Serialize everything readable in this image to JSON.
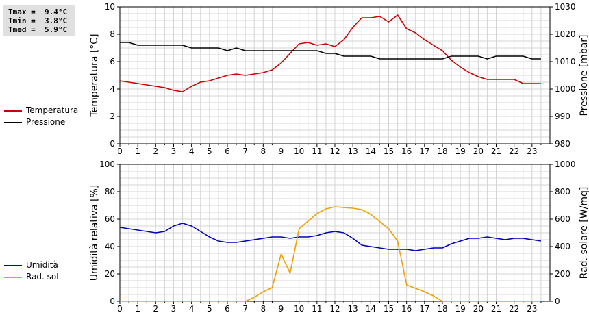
{
  "stats": {
    "tmax": "Tmax =  9.4°C",
    "tmin": "Tmin =  3.8°C",
    "tmed": "Tmed =  5.9°C"
  },
  "legend_top": [
    {
      "label": "Temperatura",
      "color": "#cc0000"
    },
    {
      "label": "Pressione",
      "color": "#000000"
    }
  ],
  "legend_bottom": [
    {
      "label": "Umidità",
      "color": "#0000bb"
    },
    {
      "label": "Rad. sol.",
      "color": "#f0a000"
    }
  ],
  "chart_data": [
    {
      "type": "line",
      "xlim": [
        0,
        24
      ],
      "xticks": [
        "0",
        "1",
        "2",
        "3",
        "4",
        "5",
        "6",
        "7",
        "8",
        "9",
        "10",
        "11",
        "12",
        "13",
        "14",
        "15",
        "16",
        "17",
        "18",
        "19",
        "20",
        "21",
        "22",
        "23"
      ],
      "ylabel": "Temperatura [°C]",
      "ylabel_right": "Pressione [mbar]",
      "ylim": [
        0,
        10
      ],
      "ylim_right": [
        980,
        1030
      ],
      "yticks": [
        "0",
        "2",
        "4",
        "6",
        "8",
        "10"
      ],
      "yticks_right": [
        "980",
        "990",
        "1000",
        "1010",
        "1020",
        "1030"
      ],
      "grid": true,
      "series": [
        {
          "name": "Temperatura",
          "axis": "left",
          "color": "#cc0000",
          "x": [
            0,
            0.5,
            1,
            1.5,
            2,
            2.5,
            3,
            3.5,
            4,
            4.5,
            5,
            5.5,
            6,
            6.5,
            7,
            7.5,
            8,
            8.5,
            9,
            9.5,
            10,
            10.5,
            11,
            11.5,
            12,
            12.5,
            13,
            13.5,
            14,
            14.5,
            15,
            15.5,
            16,
            16.5,
            17,
            17.5,
            18,
            18.5,
            19,
            19.5,
            20,
            20.5,
            21,
            21.5,
            22,
            22.5,
            23,
            23.5
          ],
          "values": [
            4.6,
            4.5,
            4.4,
            4.3,
            4.2,
            4.1,
            3.9,
            3.8,
            4.2,
            4.5,
            4.6,
            4.8,
            5.0,
            5.1,
            5.0,
            5.1,
            5.2,
            5.4,
            5.9,
            6.6,
            7.3,
            7.4,
            7.2,
            7.3,
            7.1,
            7.6,
            8.5,
            9.2,
            9.2,
            9.3,
            8.9,
            9.4,
            8.4,
            8.1,
            7.6,
            7.2,
            6.8,
            6.1,
            5.6,
            5.2,
            4.9,
            4.7,
            4.7,
            4.7,
            4.7,
            4.4,
            4.4,
            4.4
          ]
        },
        {
          "name": "Pressione",
          "axis": "right",
          "color": "#000000",
          "x": [
            0,
            0.5,
            1,
            1.5,
            2,
            2.5,
            3,
            3.5,
            4,
            4.5,
            5,
            5.5,
            6,
            6.5,
            7,
            7.5,
            8,
            8.5,
            9,
            9.5,
            10,
            10.5,
            11,
            11.5,
            12,
            12.5,
            13,
            13.5,
            14,
            14.5,
            15,
            15.5,
            16,
            16.5,
            17,
            17.5,
            18,
            18.5,
            19,
            19.5,
            20,
            20.5,
            21,
            21.5,
            22,
            22.5,
            23,
            23.5
          ],
          "values": [
            1017,
            1017,
            1016,
            1016,
            1016,
            1016,
            1016,
            1016,
            1015,
            1015,
            1015,
            1015,
            1014,
            1015,
            1014,
            1014,
            1014,
            1014,
            1014,
            1014,
            1014,
            1014,
            1014,
            1013,
            1013,
            1012,
            1012,
            1012,
            1012,
            1011,
            1011,
            1011,
            1011,
            1011,
            1011,
            1011,
            1011,
            1012,
            1012,
            1012,
            1012,
            1011,
            1012,
            1012,
            1012,
            1012,
            1011,
            1011
          ]
        }
      ]
    },
    {
      "type": "line",
      "xlim": [
        0,
        24
      ],
      "xticks": [
        "0",
        "1",
        "2",
        "3",
        "4",
        "5",
        "6",
        "7",
        "8",
        "9",
        "10",
        "11",
        "12",
        "13",
        "14",
        "15",
        "16",
        "17",
        "18",
        "19",
        "20",
        "21",
        "22",
        "23"
      ],
      "ylabel": "Umidità relativa [%]",
      "ylabel_right": "Rad. solare [W/mq]",
      "ylim": [
        0,
        100
      ],
      "ylim_right": [
        0,
        1000
      ],
      "yticks": [
        "0",
        "20",
        "40",
        "60",
        "80",
        "100"
      ],
      "yticks_right": [
        "0",
        "200",
        "400",
        "600",
        "800",
        "1000"
      ],
      "grid": true,
      "series": [
        {
          "name": "Umidità",
          "axis": "left",
          "color": "#0000bb",
          "x": [
            0,
            0.5,
            1,
            1.5,
            2,
            2.5,
            3,
            3.5,
            4,
            4.5,
            5,
            5.5,
            6,
            6.5,
            7,
            7.5,
            8,
            8.5,
            9,
            9.5,
            10,
            10.5,
            11,
            11.5,
            12,
            12.5,
            13,
            13.5,
            14,
            14.5,
            15,
            15.5,
            16,
            16.5,
            17,
            17.5,
            18,
            18.5,
            19,
            19.5,
            20,
            20.5,
            21,
            21.5,
            22,
            22.5,
            23,
            23.5
          ],
          "values": [
            54,
            53,
            52,
            51,
            50,
            51,
            55,
            57,
            55,
            51,
            47,
            44,
            43,
            43,
            44,
            45,
            46,
            47,
            47,
            46,
            47,
            47,
            48,
            50,
            51,
            50,
            46,
            41,
            40,
            39,
            38,
            38,
            38,
            37,
            38,
            39,
            39,
            42,
            44,
            46,
            46,
            47,
            46,
            45,
            46,
            46,
            45,
            44
          ]
        },
        {
          "name": "Rad. sol.",
          "axis": "right",
          "color": "#f0a000",
          "x": [
            0,
            1,
            2,
            3,
            4,
            5,
            6,
            7,
            7.5,
            8,
            8.5,
            9,
            9.5,
            10,
            11,
            11.5,
            12,
            13,
            13.5,
            14,
            15,
            15.5,
            16,
            17,
            17.5,
            18,
            19,
            20,
            21,
            22,
            23,
            23.5
          ],
          "values": [
            0,
            0,
            0,
            0,
            0,
            0,
            0,
            0,
            30,
            70,
            100,
            345,
            205,
            530,
            640,
            675,
            690,
            680,
            670,
            635,
            530,
            440,
            120,
            70,
            40,
            0,
            0,
            0,
            0,
            0,
            0,
            0
          ]
        }
      ]
    }
  ]
}
